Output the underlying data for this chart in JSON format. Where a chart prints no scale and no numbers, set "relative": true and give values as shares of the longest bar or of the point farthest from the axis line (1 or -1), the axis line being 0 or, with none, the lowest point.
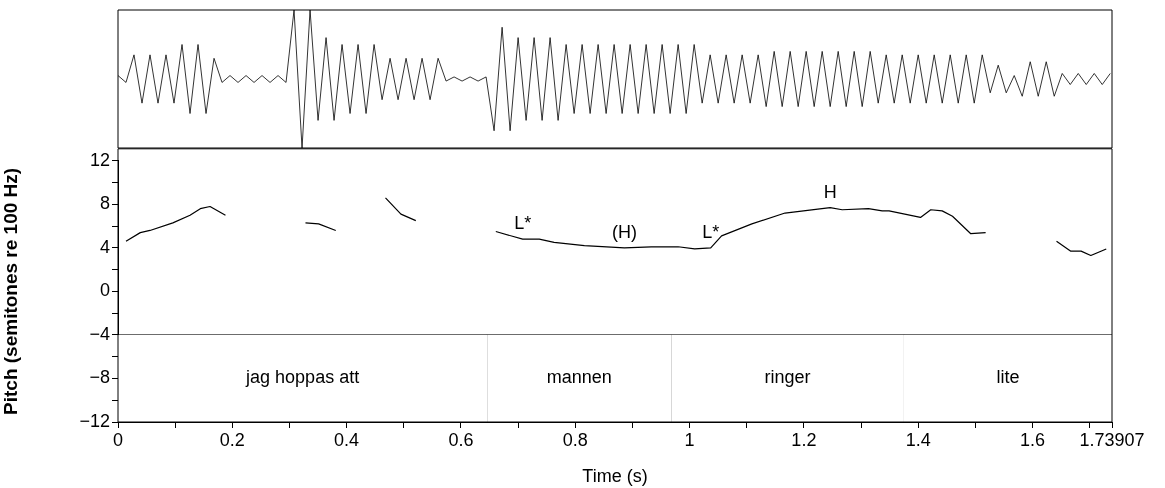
{
  "chart_data": [
    {
      "type": "line",
      "relative": true,
      "xlim": [
        0,
        1.73907
      ],
      "grid": false,
      "legend": false,
      "marker": "none",
      "line_style": "solid",
      "series": [
        {
          "color": "#000000",
          "x": [
            0,
            0.014,
            0.028,
            0.042,
            0.056,
            0.07,
            0.084,
            0.098,
            0.112,
            0.126,
            0.14,
            0.154,
            0.168,
            0.182,
            0.196,
            0.21,
            0.224,
            0.238,
            0.252,
            0.266,
            0.28,
            0.294,
            0.308,
            0.322,
            0.336,
            0.35,
            0.364,
            0.378,
            0.392,
            0.406,
            0.42,
            0.434,
            0.448,
            0.462,
            0.476,
            0.49,
            0.504,
            0.518,
            0.532,
            0.546,
            0.56,
            0.574,
            0.588,
            0.602,
            0.616,
            0.63,
            0.644,
            0.658,
            0.672,
            0.686,
            0.7,
            0.714,
            0.728,
            0.742,
            0.756,
            0.77,
            0.784,
            0.798,
            0.812,
            0.826,
            0.84,
            0.854,
            0.868,
            0.882,
            0.896,
            0.91,
            0.924,
            0.938,
            0.952,
            0.966,
            0.98,
            0.994,
            1.008,
            1.022,
            1.036,
            1.05,
            1.064,
            1.078,
            1.092,
            1.106,
            1.12,
            1.134,
            1.148,
            1.162,
            1.176,
            1.19,
            1.204,
            1.218,
            1.232,
            1.246,
            1.26,
            1.274,
            1.288,
            1.302,
            1.316,
            1.33,
            1.344,
            1.358,
            1.372,
            1.386,
            1.4,
            1.414,
            1.428,
            1.442,
            1.456,
            1.47,
            1.484,
            1.498,
            1.512,
            1.526,
            1.54,
            1.554,
            1.568,
            1.582,
            1.596,
            1.61,
            1.624,
            1.638,
            1.652,
            1.666,
            1.68,
            1.694,
            1.708,
            1.722,
            1.736
          ],
          "values": [
            0.525,
            0.475,
            0.675,
            0.325,
            0.675,
            0.325,
            0.675,
            0.325,
            0.75,
            0.25,
            0.75,
            0.25,
            0.65,
            0.475,
            0.525,
            0.475,
            0.525,
            0.475,
            0.525,
            0.475,
            0.525,
            0.475,
            1,
            0,
            1,
            0.2,
            0.8,
            0.2,
            0.75,
            0.25,
            0.75,
            0.25,
            0.75,
            0.35,
            0.65,
            0.35,
            0.65,
            0.35,
            0.65,
            0.35,
            0.65,
            0.485,
            0.515,
            0.485,
            0.515,
            0.485,
            0.515,
            0.125,
            0.875,
            0.125,
            0.8,
            0.2,
            0.8,
            0.2,
            0.8,
            0.2,
            0.75,
            0.25,
            0.75,
            0.25,
            0.75,
            0.25,
            0.75,
            0.25,
            0.75,
            0.25,
            0.75,
            0.25,
            0.75,
            0.25,
            0.75,
            0.25,
            0.75,
            0.325,
            0.675,
            0.325,
            0.675,
            0.325,
            0.675,
            0.325,
            0.675,
            0.3,
            0.7,
            0.3,
            0.7,
            0.3,
            0.7,
            0.3,
            0.7,
            0.3,
            0.7,
            0.3,
            0.7,
            0.3,
            0.7,
            0.325,
            0.675,
            0.325,
            0.675,
            0.325,
            0.675,
            0.325,
            0.675,
            0.325,
            0.675,
            0.325,
            0.675,
            0.325,
            0.675,
            0.4,
            0.6,
            0.4,
            0.525,
            0.375,
            0.625,
            0.375,
            0.625,
            0.375,
            0.54,
            0.46,
            0.54,
            0.46,
            0.54,
            0.46,
            0.54
          ]
        }
      ]
    },
    {
      "type": "line",
      "xlabel": "Time (s)",
      "ylabel": "Pitch (semitones re 100 Hz)",
      "xlim": [
        0,
        1.73907
      ],
      "ylim": [
        -12,
        12
      ],
      "xticks": [
        0,
        {
          "value": 0.1,
          "label": null
        },
        0.2,
        {
          "value": 0.3,
          "label": null
        },
        0.4,
        {
          "value": 0.5,
          "label": null
        },
        0.6,
        {
          "value": 0.7,
          "label": null
        },
        0.8,
        {
          "value": 0.9,
          "label": null
        },
        1,
        {
          "value": 1.1,
          "label": null
        },
        1.2,
        {
          "value": 1.3,
          "label": null
        },
        1.4,
        {
          "value": 1.5,
          "label": null
        },
        1.6,
        {
          "value": 1.7,
          "label": null
        },
        1.73907
      ],
      "yticks": [
        {
          "value": -12,
          "label": "−12"
        },
        {
          "value": -10,
          "label": null
        },
        {
          "value": -8,
          "label": "−8"
        },
        {
          "value": -6,
          "label": null
        },
        {
          "value": -4,
          "label": "−4"
        },
        {
          "value": -2,
          "label": null
        },
        0,
        {
          "value": 2,
          "label": null
        },
        4,
        {
          "value": 6,
          "label": null
        },
        8,
        {
          "value": 10,
          "label": null
        },
        12
      ],
      "grid": false,
      "legend": false,
      "marker": "none",
      "line_style": "solid",
      "series": [
        {
          "color": "#000000",
          "x": [
            0.014,
            0.039,
            0.056,
            0.096,
            0.126,
            0.144,
            0.161,
            0.188,
            0.25,
            0.328,
            0.351,
            0.381,
            0.42,
            0.468,
            0.495,
            0.521,
            0.6,
            0.661,
            0.708,
            0.737,
            0.763,
            0.816,
            0.886,
            0.933,
            0.98,
            1.009,
            1.037,
            1.056,
            1.109,
            1.167,
            1.246,
            1.267,
            1.313,
            1.337,
            1.349,
            1.404,
            1.422,
            1.442,
            1.46,
            1.492,
            1.518,
            1.58,
            1.642,
            1.667,
            1.685,
            1.702,
            1.729
          ],
          "values": [
            4.6,
            5.4,
            5.6,
            6.3,
            7.0,
            7.6,
            7.8,
            7.0,
            null,
            6.3,
            6.2,
            5.6,
            null,
            8.6,
            7.1,
            6.5,
            null,
            5.5,
            4.8,
            4.8,
            4.5,
            4.2,
            4.0,
            4.1,
            4.1,
            3.9,
            4.0,
            5.1,
            6.2,
            7.2,
            7.7,
            7.5,
            7.6,
            7.4,
            7.4,
            6.8,
            7.5,
            7.4,
            6.9,
            5.3,
            5.4,
            null,
            4.6,
            3.7,
            3.7,
            3.3,
            3.9
          ]
        }
      ],
      "ref_lines": [
        {
          "axis": "y",
          "value": -4
        },
        {
          "axis": "x",
          "value": 0.646
        },
        {
          "axis": "x",
          "value": 0.968
        },
        {
          "axis": "x",
          "value": 1.375
        }
      ],
      "bands": [
        {
          "axis": "x",
          "from": 0,
          "to": 0.646,
          "label": "jag hoppas att",
          "color": "#ffffff"
        },
        {
          "axis": "x",
          "from": 0.646,
          "to": 0.968,
          "label": "mannen",
          "color": "#ffffff"
        },
        {
          "axis": "x",
          "from": 0.968,
          "to": 1.375,
          "label": "ringer",
          "color": "#ffffff"
        },
        {
          "axis": "x",
          "from": 1.375,
          "to": 1.73907,
          "label": "lite",
          "color": "#ffffff"
        }
      ],
      "annotations": [
        {
          "text": "L*",
          "x": 0.708,
          "y": 4.8
        },
        {
          "text": "(H)",
          "x": 0.886,
          "y": 4.0
        },
        {
          "text": "L*",
          "x": 1.037,
          "y": 4.0
        },
        {
          "text": "H",
          "x": 1.246,
          "y": 7.7
        }
      ]
    }
  ]
}
